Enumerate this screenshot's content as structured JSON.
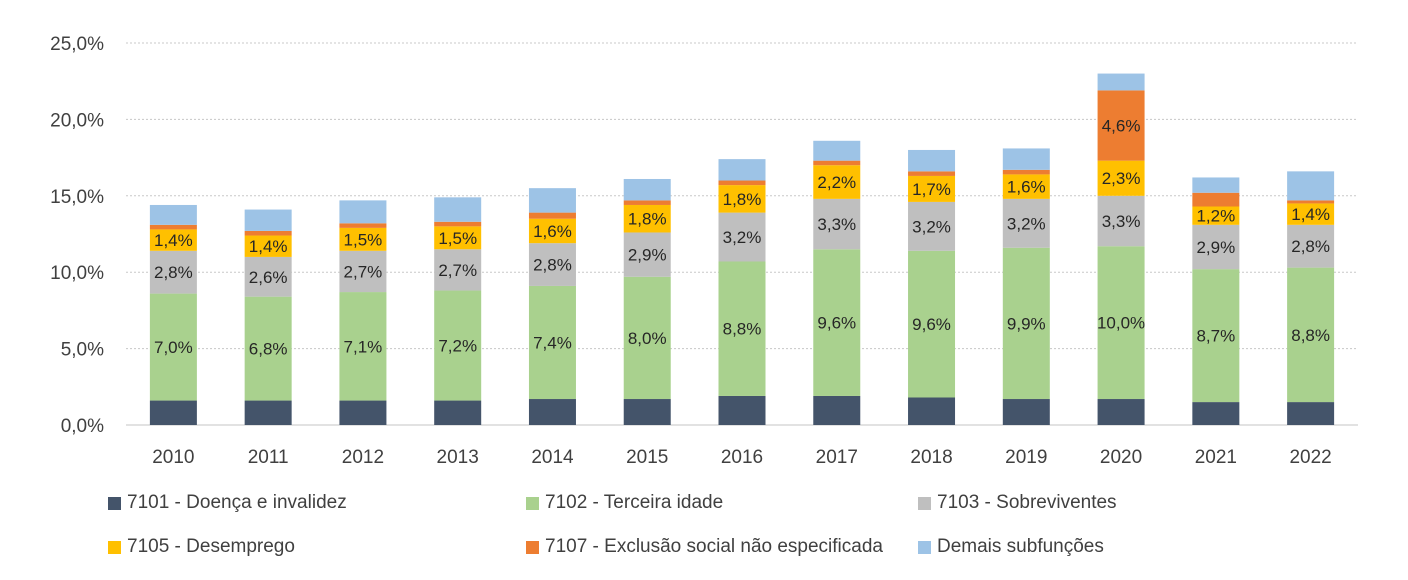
{
  "chart_data": {
    "type": "bar",
    "stacked": true,
    "categories": [
      "2010",
      "2011",
      "2012",
      "2013",
      "2014",
      "2015",
      "2016",
      "2017",
      "2018",
      "2019",
      "2020",
      "2021",
      "2022"
    ],
    "y_ticks": [
      "0,0%",
      "5,0%",
      "10,0%",
      "15,0%",
      "20,0%",
      "25,0%"
    ],
    "ylim": [
      0,
      25
    ],
    "grid": true,
    "legend_position": "bottom",
    "series": [
      {
        "name": "7101 - Doença e invalidez",
        "color": "#44546a",
        "values": [
          1.6,
          1.6,
          1.6,
          1.6,
          1.7,
          1.7,
          1.9,
          1.9,
          1.8,
          1.7,
          1.7,
          1.5,
          1.5
        ],
        "labels": [
          "",
          "",
          "",
          "",
          "",
          "",
          "",
          "",
          "",
          "",
          "",
          "",
          ""
        ]
      },
      {
        "name": "7102 - Terceira idade",
        "color": "#a9d18e",
        "values": [
          7.0,
          6.8,
          7.1,
          7.2,
          7.4,
          8.0,
          8.8,
          9.6,
          9.6,
          9.9,
          10.0,
          8.7,
          8.8
        ],
        "labels": [
          "7,0%",
          "6,8%",
          "7,1%",
          "7,2%",
          "7,4%",
          "8,0%",
          "8,8%",
          "9,6%",
          "9,6%",
          "9,9%",
          "10,0%",
          "8,7%",
          "8,8%"
        ]
      },
      {
        "name": "7103 - Sobreviventes",
        "color": "#bfbfbf",
        "values": [
          2.8,
          2.6,
          2.7,
          2.7,
          2.8,
          2.9,
          3.2,
          3.3,
          3.2,
          3.2,
          3.3,
          2.9,
          2.8
        ],
        "labels": [
          "2,8%",
          "2,6%",
          "2,7%",
          "2,7%",
          "2,8%",
          "2,9%",
          "3,2%",
          "3,3%",
          "3,2%",
          "3,2%",
          "3,3%",
          "2,9%",
          "2,8%"
        ]
      },
      {
        "name": "7105 - Desemprego",
        "color": "#ffc000",
        "values": [
          1.4,
          1.4,
          1.5,
          1.5,
          1.6,
          1.8,
          1.8,
          2.2,
          1.7,
          1.6,
          2.3,
          1.2,
          1.4
        ],
        "labels": [
          "1,4%",
          "1,4%",
          "1,5%",
          "1,5%",
          "1,6%",
          "1,8%",
          "1,8%",
          "2,2%",
          "1,7%",
          "1,6%",
          "2,3%",
          "1,2%",
          "1,4%"
        ]
      },
      {
        "name": "7107 - Exclusão social não especificada",
        "color": "#ed7d31",
        "values": [
          0.3,
          0.3,
          0.3,
          0.3,
          0.4,
          0.3,
          0.3,
          0.3,
          0.3,
          0.3,
          4.6,
          0.9,
          0.2
        ],
        "labels": [
          "",
          "",
          "",
          "",
          "",
          "",
          "",
          "",
          "",
          "",
          "4,6%",
          "",
          ""
        ]
      },
      {
        "name": "Demais subfunções",
        "color": "#9dc3e6",
        "values": [
          1.3,
          1.4,
          1.5,
          1.6,
          1.6,
          1.4,
          1.4,
          1.3,
          1.4,
          1.4,
          1.1,
          1.0,
          1.9
        ],
        "labels": [
          "",
          "",
          "",
          "",
          "",
          "",
          "",
          "",
          "",
          "",
          "",
          "",
          ""
        ]
      }
    ]
  }
}
